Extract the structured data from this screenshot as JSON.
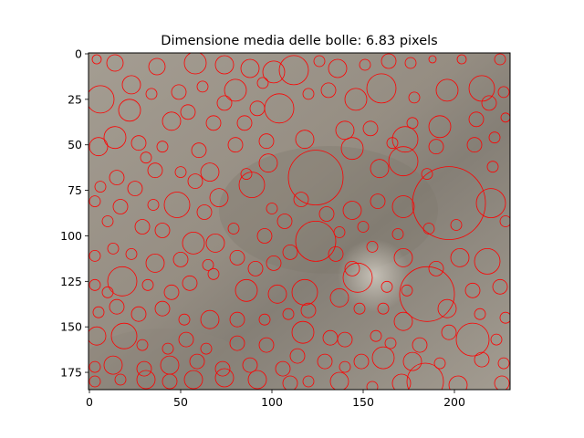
{
  "chart_data": {
    "type": "image",
    "title": "Dimensione media delle bolle: 6.83 pixels",
    "xlabel": "",
    "ylabel": "",
    "xlim": [
      -0.5,
      230.5
    ],
    "ylim": [
      184.5,
      -0.5
    ],
    "x_ticks": [
      0,
      50,
      100,
      150,
      200
    ],
    "y_ticks": [
      0,
      25,
      50,
      75,
      100,
      125,
      150,
      175
    ],
    "grid": false,
    "legend": "none",
    "image_colors": {
      "background": "#9d958a",
      "dark_band": "#7d776e",
      "bright_spot": "#c6c0b6"
    },
    "circle_color": "#ff0000",
    "mean_bubble_size_px": 6.83,
    "series": [
      {
        "type": "circles",
        "points": [
          [
            4,
            3,
            2.5
          ],
          [
            14,
            5,
            4.5
          ],
          [
            37,
            7,
            4.5
          ],
          [
            58,
            5,
            6
          ],
          [
            74,
            6,
            5
          ],
          [
            88,
            8,
            5
          ],
          [
            101,
            10,
            6
          ],
          [
            112,
            9,
            8
          ],
          [
            126,
            4,
            3
          ],
          [
            136,
            8,
            5
          ],
          [
            151,
            6,
            3
          ],
          [
            164,
            4,
            4
          ],
          [
            176,
            5,
            3
          ],
          [
            188,
            3,
            2
          ],
          [
            204,
            3,
            2.5
          ],
          [
            225,
            3,
            3
          ],
          [
            6,
            25,
            7.5
          ],
          [
            23,
            17,
            5
          ],
          [
            34,
            22,
            3
          ],
          [
            49,
            21,
            4
          ],
          [
            62,
            18,
            3
          ],
          [
            80,
            20,
            6
          ],
          [
            95,
            16,
            3
          ],
          [
            104,
            30,
            8
          ],
          [
            120,
            22,
            3
          ],
          [
            131,
            20,
            4
          ],
          [
            146,
            25,
            6
          ],
          [
            160,
            19,
            8
          ],
          [
            178,
            24,
            3
          ],
          [
            196,
            20,
            6
          ],
          [
            215,
            19,
            7
          ],
          [
            227,
            21,
            3
          ],
          [
            22,
            31,
            6
          ],
          [
            45,
            37,
            5
          ],
          [
            54,
            32,
            4
          ],
          [
            68,
            38,
            4
          ],
          [
            74,
            27,
            4
          ],
          [
            85,
            38,
            4
          ],
          [
            92,
            30,
            4
          ],
          [
            140,
            42,
            5
          ],
          [
            154,
            41,
            4
          ],
          [
            177,
            38,
            3
          ],
          [
            192,
            40,
            6
          ],
          [
            212,
            36,
            4
          ],
          [
            219,
            27,
            4
          ],
          [
            228,
            35,
            2.5
          ],
          [
            5,
            51,
            5
          ],
          [
            14,
            46,
            6
          ],
          [
            27,
            49,
            4
          ],
          [
            40,
            51,
            3
          ],
          [
            60,
            53,
            4
          ],
          [
            80,
            50,
            4
          ],
          [
            97,
            48,
            4
          ],
          [
            118,
            47,
            5
          ],
          [
            144,
            52,
            6
          ],
          [
            166,
            49,
            3
          ],
          [
            173,
            47,
            7
          ],
          [
            190,
            51,
            4
          ],
          [
            211,
            50,
            4
          ],
          [
            222,
            46,
            3
          ],
          [
            6,
            73,
            3
          ],
          [
            15,
            68,
            4
          ],
          [
            31,
            57,
            3
          ],
          [
            36,
            64,
            4
          ],
          [
            50,
            65,
            3
          ],
          [
            58,
            70,
            4
          ],
          [
            66,
            65,
            5
          ],
          [
            86,
            66,
            3
          ],
          [
            98,
            60,
            5
          ],
          [
            124,
            68,
            15
          ],
          [
            159,
            63,
            5
          ],
          [
            172,
            59,
            8
          ],
          [
            185,
            66,
            3
          ],
          [
            221,
            62,
            3
          ],
          [
            3,
            81,
            3
          ],
          [
            17,
            84,
            4
          ],
          [
            25,
            74,
            4
          ],
          [
            35,
            83,
            3
          ],
          [
            48,
            83,
            7
          ],
          [
            63,
            87,
            4
          ],
          [
            71,
            79,
            5
          ],
          [
            89,
            72,
            7
          ],
          [
            100,
            85,
            3
          ],
          [
            116,
            80,
            4
          ],
          [
            130,
            88,
            4
          ],
          [
            144,
            86,
            5
          ],
          [
            158,
            81,
            4
          ],
          [
            172,
            84,
            6
          ],
          [
            197,
            82,
            20
          ],
          [
            220,
            82,
            8
          ],
          [
            10,
            92,
            3
          ],
          [
            29,
            95,
            4
          ],
          [
            40,
            97,
            4
          ],
          [
            57,
            104,
            6
          ],
          [
            69,
            104,
            5
          ],
          [
            79,
            96,
            3
          ],
          [
            96,
            100,
            4
          ],
          [
            107,
            92,
            4
          ],
          [
            124,
            103,
            11
          ],
          [
            137,
            98,
            3
          ],
          [
            150,
            95,
            3
          ],
          [
            169,
            99,
            3
          ],
          [
            186,
            96,
            3
          ],
          [
            201,
            94,
            3
          ],
          [
            228,
            92,
            3
          ],
          [
            3,
            111,
            3
          ],
          [
            13,
            107,
            3
          ],
          [
            23,
            110,
            3
          ],
          [
            36,
            115,
            5
          ],
          [
            50,
            113,
            4
          ],
          [
            65,
            116,
            3
          ],
          [
            81,
            112,
            4
          ],
          [
            91,
            118,
            4
          ],
          [
            101,
            115,
            4
          ],
          [
            110,
            109,
            4
          ],
          [
            135,
            110,
            4
          ],
          [
            144,
            118,
            4
          ],
          [
            155,
            106,
            3
          ],
          [
            172,
            112,
            5
          ],
          [
            190,
            118,
            4
          ],
          [
            203,
            112,
            5
          ],
          [
            218,
            114,
            7
          ],
          [
            3,
            127,
            3
          ],
          [
            10,
            131,
            3
          ],
          [
            18,
            125,
            8
          ],
          [
            32,
            127,
            3
          ],
          [
            45,
            131,
            4
          ],
          [
            55,
            126,
            4
          ],
          [
            68,
            121,
            3
          ],
          [
            86,
            130,
            6
          ],
          [
            103,
            132,
            5
          ],
          [
            118,
            131,
            7
          ],
          [
            147,
            123,
            8
          ],
          [
            163,
            128,
            3
          ],
          [
            174,
            130,
            3
          ],
          [
            185,
            132,
            15
          ],
          [
            210,
            130,
            4
          ],
          [
            225,
            128,
            4
          ],
          [
            5,
            142,
            3
          ],
          [
            15,
            139,
            4
          ],
          [
            27,
            143,
            4
          ],
          [
            40,
            140,
            4
          ],
          [
            52,
            146,
            3
          ],
          [
            66,
            146,
            5
          ],
          [
            81,
            146,
            4
          ],
          [
            96,
            146,
            3
          ],
          [
            109,
            143,
            3
          ],
          [
            120,
            141,
            4
          ],
          [
            137,
            134,
            5
          ],
          [
            148,
            140,
            3
          ],
          [
            161,
            140,
            3
          ],
          [
            172,
            147,
            5
          ],
          [
            196,
            140,
            5
          ],
          [
            214,
            143,
            3
          ],
          [
            228,
            145,
            3
          ],
          [
            4,
            155,
            5
          ],
          [
            19,
            155,
            7
          ],
          [
            29,
            160,
            3
          ],
          [
            43,
            162,
            3
          ],
          [
            53,
            157,
            4
          ],
          [
            64,
            162,
            3
          ],
          [
            81,
            159,
            4
          ],
          [
            97,
            160,
            4
          ],
          [
            117,
            153,
            6
          ],
          [
            132,
            156,
            4
          ],
          [
            140,
            157,
            4
          ],
          [
            157,
            155,
            3
          ],
          [
            165,
            159,
            3
          ],
          [
            181,
            160,
            4
          ],
          [
            197,
            153,
            4
          ],
          [
            210,
            157,
            9
          ],
          [
            223,
            157,
            3
          ],
          [
            3,
            172,
            3
          ],
          [
            13,
            171,
            5
          ],
          [
            30,
            173,
            4
          ],
          [
            44,
            171,
            5
          ],
          [
            59,
            169,
            4
          ],
          [
            73,
            173,
            4
          ],
          [
            88,
            171,
            4
          ],
          [
            106,
            173,
            4
          ],
          [
            114,
            166,
            4
          ],
          [
            129,
            169,
            4
          ],
          [
            140,
            172,
            3
          ],
          [
            149,
            169,
            4
          ],
          [
            161,
            167,
            6
          ],
          [
            177,
            169,
            5
          ],
          [
            192,
            170,
            3
          ],
          [
            215,
            168,
            4
          ],
          [
            227,
            170,
            3
          ],
          [
            3,
            180,
            3
          ],
          [
            17,
            179,
            3
          ],
          [
            31,
            179,
            5
          ],
          [
            44,
            180,
            4
          ],
          [
            57,
            179,
            5
          ],
          [
            74,
            178,
            5
          ],
          [
            92,
            179,
            5
          ],
          [
            110,
            181,
            4
          ],
          [
            120,
            180,
            3
          ],
          [
            137,
            180,
            5
          ],
          [
            155,
            183,
            3
          ],
          [
            171,
            181,
            5
          ],
          [
            184,
            180,
            10
          ],
          [
            202,
            182,
            5
          ],
          [
            226,
            181,
            4
          ]
        ]
      }
    ]
  }
}
